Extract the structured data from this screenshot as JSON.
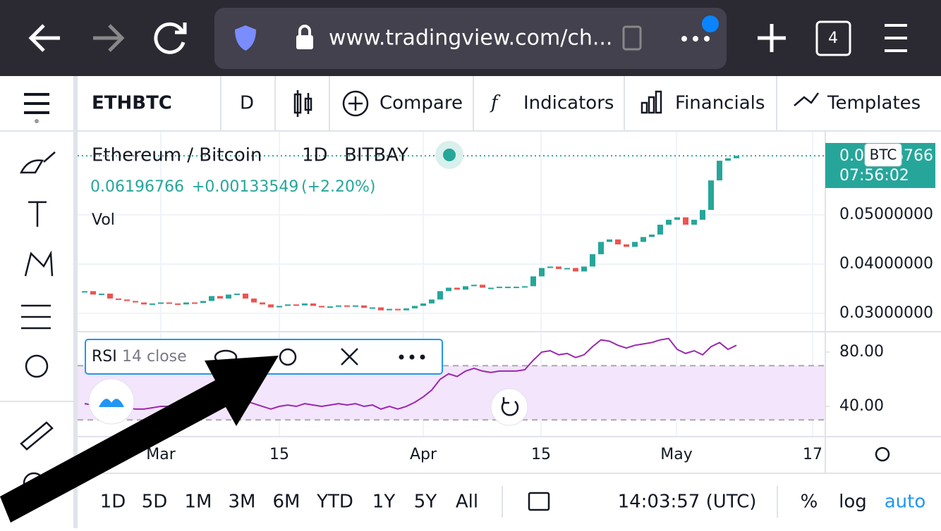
{
  "browser": {
    "url": "www.tradingview.com/ch...",
    "tab_count": "4"
  },
  "toolbar": {
    "symbol": "ETHBTC",
    "interval": "D",
    "compare": "Compare",
    "indicators": "Indicators",
    "financials": "Financials",
    "templates": "Templates"
  },
  "chart": {
    "type": "candlestick",
    "symbol_name": "Ethereum / Bitcoin",
    "interval": "1D",
    "exchange": "BITBAY",
    "last": "0.06196766",
    "change": "+0.00133549",
    "change_pct": "(+2.20%)",
    "volume_label": "Vol",
    "currency": "BTC",
    "countdown": "07:56:02",
    "color_up": "#26a69a",
    "color_down": "#ef5350",
    "closes": [
      0.0345,
      0.0338,
      0.034,
      0.033,
      0.0328,
      0.0325,
      0.0322,
      0.0318,
      0.032,
      0.0322,
      0.032,
      0.0318,
      0.0322,
      0.0321,
      0.0325,
      0.0335,
      0.033,
      0.0338,
      0.034,
      0.033,
      0.0322,
      0.0318,
      0.0312,
      0.0315,
      0.0318,
      0.0316,
      0.032,
      0.0315,
      0.0312,
      0.0314,
      0.0316,
      0.0314,
      0.0316,
      0.0311,
      0.0312,
      0.0306,
      0.0309,
      0.0306,
      0.031,
      0.0315,
      0.032,
      0.0328,
      0.0345,
      0.0352,
      0.0348,
      0.0355,
      0.0358,
      0.0352,
      0.0352,
      0.0354,
      0.0354,
      0.0354,
      0.0355,
      0.0375,
      0.0392,
      0.0395,
      0.039,
      0.0392,
      0.0385,
      0.0395,
      0.042,
      0.0445,
      0.045,
      0.044,
      0.0435,
      0.0445,
      0.0455,
      0.046,
      0.048,
      0.049,
      0.0495,
      0.048,
      0.049,
      0.051,
      0.057,
      0.061,
      0.0615,
      0.062
    ],
    "ylim": [
      0.0264,
      0.0669
    ],
    "yticks": [
      {
        "value": 0.05,
        "label": "0.05000000"
      },
      {
        "value": 0.04,
        "label": "0.04000000"
      },
      {
        "value": 0.03,
        "label": "0.03000000"
      }
    ],
    "xlabels": [
      "Mar",
      "15",
      "Apr",
      "15",
      "May",
      "17"
    ],
    "rsi": {
      "name": "RSI",
      "params": "14 close",
      "color": "#9c27b0",
      "band": [
        30,
        70
      ],
      "ylim": [
        17.7,
        94.5
      ],
      "yticks": [
        {
          "value": 80,
          "label": "80.00"
        },
        {
          "value": 40,
          "label": "40.00"
        }
      ],
      "values": [
        42,
        41,
        41,
        40,
        39,
        39,
        38,
        38,
        39,
        40,
        40,
        39,
        40,
        40,
        41,
        44,
        43,
        46,
        47,
        44,
        42,
        40,
        38,
        40,
        41,
        40,
        42,
        41,
        40,
        41,
        42,
        41,
        42,
        40,
        41,
        38,
        40,
        38,
        40,
        43,
        47,
        52,
        60,
        64,
        62,
        66,
        68,
        66,
        65,
        66,
        66,
        66,
        67,
        74,
        80,
        81,
        78,
        79,
        76,
        78,
        84,
        89,
        88,
        85,
        83,
        85,
        86,
        87,
        89,
        90,
        82,
        79,
        81,
        78,
        84,
        87,
        82,
        85
      ]
    }
  },
  "bottom_bar": {
    "ranges": [
      "1D",
      "5D",
      "1M",
      "3M",
      "6M",
      "YTD",
      "1Y",
      "5Y",
      "All"
    ],
    "time": "14:03:57 (UTC)",
    "percent": "%",
    "log": "log",
    "auto": "auto"
  }
}
